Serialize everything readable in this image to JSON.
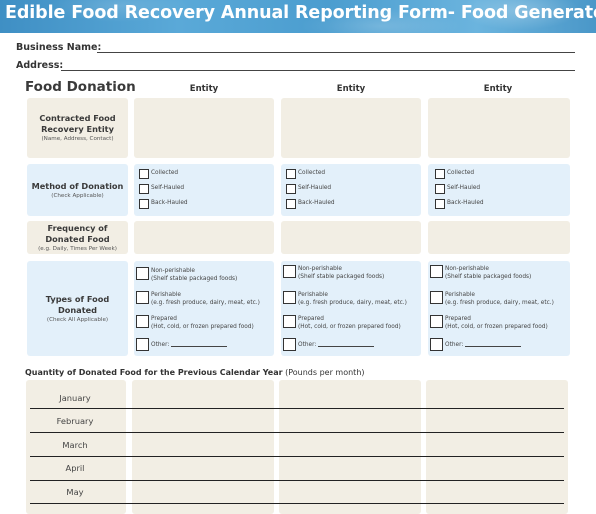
{
  "header": {
    "title": "Edible Food Recovery Annual Reporting Form- Food Generators"
  },
  "fields": {
    "business_name_label": "Business Name:",
    "address_label": "Address:"
  },
  "food_donation": {
    "title": "Food Donation",
    "entity_headers": [
      "Entity",
      "Entity",
      "Entity"
    ],
    "rows": {
      "contracted": {
        "label": "Contracted Food Recovery Entity",
        "sub": "(Name, Address, Contact)"
      },
      "method": {
        "label": "Method of Donation",
        "sub": "(Check Applicable)",
        "options": [
          "Collected",
          "Self-Hauled",
          "Back-Hauled"
        ]
      },
      "frequency": {
        "label": "Frequency of Donated Food",
        "sub": "(e.g. Daily, Times Per Week)"
      },
      "types": {
        "label": "Types of Food Donated",
        "sub": "(Check All Applicable)",
        "options": [
          {
            "line1": "Non-perishable",
            "line2": "(Shelf stable packaged foods)"
          },
          {
            "line1": "Perishable",
            "line2": "(e.g. fresh produce, dairy, meat, etc.)"
          },
          {
            "line1": "Prepared",
            "line2": "(Hot, cold, or frozen prepared food)"
          },
          {
            "line1": "Other:",
            "line2": ""
          }
        ]
      }
    }
  },
  "quantity": {
    "heading_bold": "Quantity of Donated Food for the Previous Calendar Year",
    "heading_normal": "(Pounds per month)",
    "months": [
      "January",
      "February",
      "March",
      "April",
      "May"
    ]
  },
  "colors": {
    "banner": "#4b9dcf",
    "beige_cell": "#f2eee4",
    "blue_cell": "#e3f0fa"
  }
}
